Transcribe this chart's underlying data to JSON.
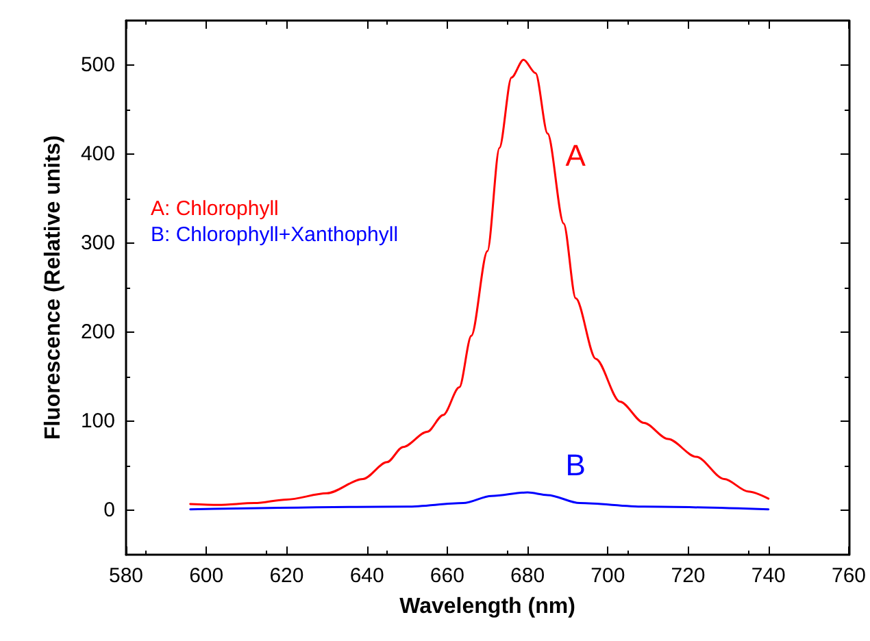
{
  "chart_data": {
    "type": "line",
    "xlabel": "Wavelength (nm)",
    "ylabel": "Fluorescence (Relative units)",
    "xlim": [
      580,
      760
    ],
    "xticks": [
      580,
      600,
      620,
      640,
      660,
      680,
      700,
      720,
      740,
      760
    ],
    "ylim": [
      -50,
      550
    ],
    "yticks": [
      0,
      100,
      200,
      300,
      400,
      500
    ],
    "legend": "left",
    "grid": false,
    "marker": "none",
    "line_style": "solid",
    "annotations": [
      "A",
      "B"
    ],
    "series": [
      {
        "name": "A: Chlorophyll",
        "color": "#ff0000",
        "x": [
          596,
          603,
          612,
          620,
          630,
          639,
          645,
          649,
          655,
          659,
          663,
          666,
          670,
          673,
          676,
          679,
          682,
          685,
          689,
          692,
          697,
          703,
          709,
          715,
          722,
          729,
          735,
          740
        ],
        "values": [
          7,
          6,
          8,
          12,
          19,
          35,
          54,
          71,
          88,
          107,
          138,
          196,
          291,
          407,
          486,
          506,
          491,
          423,
          322,
          238,
          170,
          122,
          98,
          80,
          60,
          35,
          21,
          13
        ]
      },
      {
        "name": "B: Chlorophyll+Xanthophyll",
        "color": "#0000ff",
        "x": [
          596,
          650,
          664,
          671,
          680,
          685,
          693,
          709,
          740
        ],
        "values": [
          1,
          4,
          8,
          16,
          20,
          17,
          8,
          4,
          1
        ]
      }
    ]
  }
}
